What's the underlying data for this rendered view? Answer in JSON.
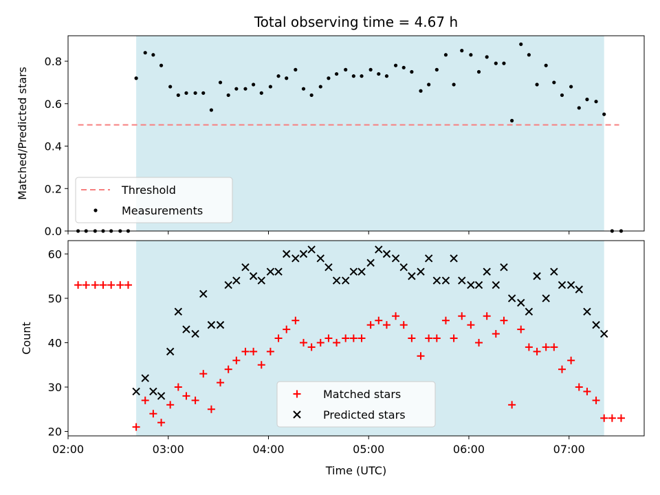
{
  "title": "Total observing time = 4.67 h",
  "colors": {
    "shade": "#d4ebf1",
    "threshold": "#f77f7f",
    "measurements": "#000000",
    "matched": "#ff0000",
    "predicted": "#000000"
  },
  "chart_data": [
    {
      "type": "scatter",
      "panel": "top",
      "ylabel": "Matched/Predicted stars",
      "xlabel": "",
      "ylim": [
        0,
        0.92
      ],
      "yticks": [
        0.0,
        0.2,
        0.4,
        0.6,
        0.8
      ],
      "ytick_labels": [
        "0.0",
        "0.2",
        "0.4",
        "0.6",
        "0.8"
      ],
      "shaded_span_hours": [
        2.68,
        7.35
      ],
      "threshold": {
        "name": "Threshold",
        "y": 0.5,
        "x_range_hours": [
          2.1,
          7.5
        ]
      },
      "legend": {
        "placement": "lower-left",
        "entries": [
          "Threshold",
          "Measurements"
        ]
      },
      "series": [
        {
          "name": "Measurements",
          "marker": "dot",
          "points_hours": [
            [
              2.1,
              0.0
            ],
            [
              2.18,
              0.0
            ],
            [
              2.27,
              0.0
            ],
            [
              2.35,
              0.0
            ],
            [
              2.43,
              0.0
            ],
            [
              2.52,
              0.0
            ],
            [
              2.6,
              0.0
            ],
            [
              2.68,
              0.72
            ],
            [
              2.77,
              0.84
            ],
            [
              2.85,
              0.83
            ],
            [
              2.93,
              0.78
            ],
            [
              3.02,
              0.68
            ],
            [
              3.1,
              0.64
            ],
            [
              3.18,
              0.65
            ],
            [
              3.27,
              0.65
            ],
            [
              3.35,
              0.65
            ],
            [
              3.43,
              0.57
            ],
            [
              3.52,
              0.7
            ],
            [
              3.6,
              0.64
            ],
            [
              3.68,
              0.67
            ],
            [
              3.77,
              0.67
            ],
            [
              3.85,
              0.69
            ],
            [
              3.93,
              0.65
            ],
            [
              4.02,
              0.68
            ],
            [
              4.1,
              0.73
            ],
            [
              4.18,
              0.72
            ],
            [
              4.27,
              0.76
            ],
            [
              4.35,
              0.67
            ],
            [
              4.43,
              0.64
            ],
            [
              4.52,
              0.68
            ],
            [
              4.6,
              0.72
            ],
            [
              4.68,
              0.74
            ],
            [
              4.77,
              0.76
            ],
            [
              4.85,
              0.73
            ],
            [
              4.93,
              0.73
            ],
            [
              5.02,
              0.76
            ],
            [
              5.1,
              0.74
            ],
            [
              5.18,
              0.73
            ],
            [
              5.27,
              0.78
            ],
            [
              5.35,
              0.77
            ],
            [
              5.43,
              0.75
            ],
            [
              5.52,
              0.66
            ],
            [
              5.6,
              0.69
            ],
            [
              5.68,
              0.76
            ],
            [
              5.77,
              0.83
            ],
            [
              5.85,
              0.69
            ],
            [
              5.93,
              0.85
            ],
            [
              6.02,
              0.83
            ],
            [
              6.1,
              0.75
            ],
            [
              6.18,
              0.82
            ],
            [
              6.27,
              0.79
            ],
            [
              6.35,
              0.79
            ],
            [
              6.43,
              0.52
            ],
            [
              6.52,
              0.88
            ],
            [
              6.6,
              0.83
            ],
            [
              6.68,
              0.69
            ],
            [
              6.77,
              0.78
            ],
            [
              6.85,
              0.7
            ],
            [
              6.93,
              0.64
            ],
            [
              7.02,
              0.68
            ],
            [
              7.1,
              0.58
            ],
            [
              7.18,
              0.62
            ],
            [
              7.27,
              0.61
            ],
            [
              7.35,
              0.55
            ],
            [
              7.43,
              0.0
            ],
            [
              7.52,
              0.0
            ]
          ]
        }
      ]
    },
    {
      "type": "scatter",
      "panel": "bottom",
      "ylabel": "Count",
      "xlabel": "Time (UTC)",
      "xlim": [
        "02:00",
        "07:45"
      ],
      "xticks": [
        "02:00",
        "03:00",
        "04:00",
        "05:00",
        "06:00",
        "07:00"
      ],
      "ylim": [
        19,
        63
      ],
      "yticks": [
        20,
        30,
        40,
        50,
        60
      ],
      "ytick_labels": [
        "20",
        "30",
        "40",
        "50",
        "60"
      ],
      "shaded_span_hours": [
        2.68,
        7.35
      ],
      "legend": {
        "placement": "lower-center",
        "entries": [
          "Matched stars",
          "Predicted stars"
        ]
      },
      "series": [
        {
          "name": "Matched stars",
          "marker": "plus",
          "points_hours": [
            [
              2.1,
              53
            ],
            [
              2.18,
              53
            ],
            [
              2.27,
              53
            ],
            [
              2.35,
              53
            ],
            [
              2.43,
              53
            ],
            [
              2.52,
              53
            ],
            [
              2.6,
              53
            ],
            [
              2.68,
              21
            ],
            [
              2.77,
              27
            ],
            [
              2.85,
              24
            ],
            [
              2.93,
              22
            ],
            [
              3.02,
              26
            ],
            [
              3.1,
              30
            ],
            [
              3.18,
              28
            ],
            [
              3.27,
              27
            ],
            [
              3.35,
              33
            ],
            [
              3.43,
              25
            ],
            [
              3.52,
              31
            ],
            [
              3.6,
              34
            ],
            [
              3.68,
              36
            ],
            [
              3.77,
              38
            ],
            [
              3.85,
              38
            ],
            [
              3.93,
              35
            ],
            [
              4.02,
              38
            ],
            [
              4.1,
              41
            ],
            [
              4.18,
              43
            ],
            [
              4.27,
              45
            ],
            [
              4.35,
              40
            ],
            [
              4.43,
              39
            ],
            [
              4.52,
              40
            ],
            [
              4.6,
              41
            ],
            [
              4.68,
              40
            ],
            [
              4.77,
              41
            ],
            [
              4.85,
              41
            ],
            [
              4.93,
              41
            ],
            [
              5.02,
              44
            ],
            [
              5.1,
              45
            ],
            [
              5.18,
              44
            ],
            [
              5.27,
              46
            ],
            [
              5.35,
              44
            ],
            [
              5.43,
              41
            ],
            [
              5.52,
              37
            ],
            [
              5.6,
              41
            ],
            [
              5.68,
              41
            ],
            [
              5.77,
              45
            ],
            [
              5.85,
              41
            ],
            [
              5.93,
              46
            ],
            [
              6.02,
              44
            ],
            [
              6.1,
              40
            ],
            [
              6.18,
              46
            ],
            [
              6.27,
              42
            ],
            [
              6.35,
              45
            ],
            [
              6.43,
              26
            ],
            [
              6.52,
              43
            ],
            [
              6.6,
              39
            ],
            [
              6.68,
              38
            ],
            [
              6.77,
              39
            ],
            [
              6.85,
              39
            ],
            [
              6.93,
              34
            ],
            [
              7.02,
              36
            ],
            [
              7.1,
              30
            ],
            [
              7.18,
              29
            ],
            [
              7.27,
              27
            ],
            [
              7.35,
              23
            ],
            [
              7.43,
              23
            ],
            [
              7.52,
              23
            ]
          ]
        },
        {
          "name": "Predicted stars",
          "marker": "x",
          "points_hours": [
            [
              2.68,
              29
            ],
            [
              2.77,
              32
            ],
            [
              2.85,
              29
            ],
            [
              2.93,
              28
            ],
            [
              3.02,
              38
            ],
            [
              3.1,
              47
            ],
            [
              3.18,
              43
            ],
            [
              3.27,
              42
            ],
            [
              3.35,
              51
            ],
            [
              3.43,
              44
            ],
            [
              3.52,
              44
            ],
            [
              3.6,
              53
            ],
            [
              3.68,
              54
            ],
            [
              3.77,
              57
            ],
            [
              3.85,
              55
            ],
            [
              3.93,
              54
            ],
            [
              4.02,
              56
            ],
            [
              4.1,
              56
            ],
            [
              4.18,
              60
            ],
            [
              4.27,
              59
            ],
            [
              4.35,
              60
            ],
            [
              4.43,
              61
            ],
            [
              4.52,
              59
            ],
            [
              4.6,
              57
            ],
            [
              4.68,
              54
            ],
            [
              4.77,
              54
            ],
            [
              4.85,
              56
            ],
            [
              4.93,
              56
            ],
            [
              5.02,
              58
            ],
            [
              5.1,
              61
            ],
            [
              5.18,
              60
            ],
            [
              5.27,
              59
            ],
            [
              5.35,
              57
            ],
            [
              5.43,
              55
            ],
            [
              5.52,
              56
            ],
            [
              5.6,
              59
            ],
            [
              5.68,
              54
            ],
            [
              5.77,
              54
            ],
            [
              5.85,
              59
            ],
            [
              5.93,
              54
            ],
            [
              6.02,
              53
            ],
            [
              6.1,
              53
            ],
            [
              6.18,
              56
            ],
            [
              6.27,
              53
            ],
            [
              6.35,
              57
            ],
            [
              6.43,
              50
            ],
            [
              6.52,
              49
            ],
            [
              6.6,
              47
            ],
            [
              6.68,
              55
            ],
            [
              6.77,
              50
            ],
            [
              6.85,
              56
            ],
            [
              6.93,
              53
            ],
            [
              7.02,
              53
            ],
            [
              7.1,
              52
            ],
            [
              7.18,
              47
            ],
            [
              7.27,
              44
            ],
            [
              7.35,
              42
            ]
          ]
        }
      ]
    }
  ]
}
